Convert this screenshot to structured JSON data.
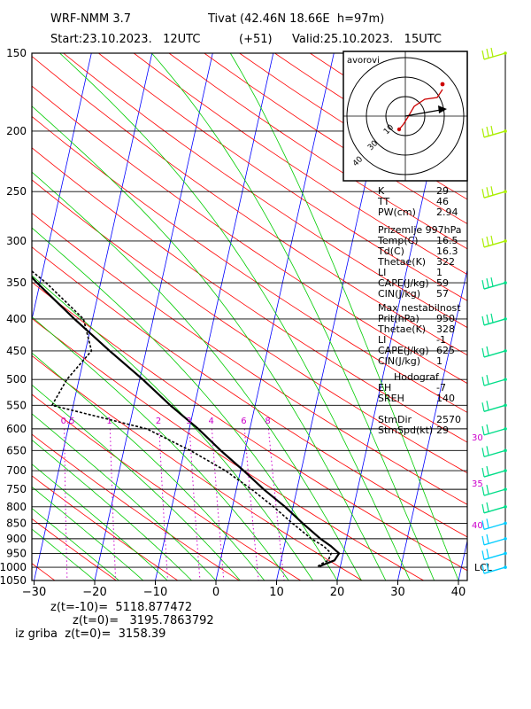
{
  "header": {
    "model": "WRF-NMM 3.7",
    "station": "Tivat (42.46N 18.66E  h=97m)",
    "start": "Start:23.10.2023.   12UTC",
    "lead": "(+51)",
    "valid": "Valid:25.10.2023.   15UTC"
  },
  "hodograph": {
    "title": "avorovi",
    "ring_labels": [
      "10",
      "30",
      "40"
    ]
  },
  "panels": [
    {
      "title": "",
      "rows": [
        [
          "K",
          "29"
        ],
        [
          "TT",
          "46"
        ],
        [
          "PW(cm)",
          "2.94"
        ]
      ]
    },
    {
      "title": "Prizemlje 997hPa",
      "rows": [
        [
          "Temp(C)",
          "16.5"
        ],
        [
          "Td(C)",
          "16.3"
        ],
        [
          "Thetae(K)",
          "322"
        ],
        [
          "LI",
          "1"
        ],
        [
          "CAPE(J/kg)",
          "59"
        ],
        [
          "CIN(J/kg)",
          "57"
        ]
      ]
    },
    {
      "title": "Max nestabilnost",
      "rows": [
        [
          "Prit(hPa)",
          "950"
        ],
        [
          "Thetae(K)",
          "328"
        ],
        [
          "LI",
          "-1"
        ],
        [
          "CAPE(J/kg)",
          "625"
        ],
        [
          "CIN(J/kg)",
          "1"
        ]
      ]
    },
    {
      "title": "Hodograf",
      "rows": [
        [
          "EH",
          "-7"
        ],
        [
          "SREH",
          "140"
        ],
        [
          "",
          ""
        ],
        [
          "StmDir",
          "2570"
        ],
        [
          "StmSpd(kt)",
          "29"
        ]
      ]
    }
  ],
  "footer": {
    "line1": "z(t=-10)=  5118.877472",
    "line2": "z(t=0)=   3195.7863792",
    "line3": "iz griba  z(t=0)=  3158.39"
  },
  "lcl_label": "LCL",
  "colors": {
    "isobar": "#000000",
    "isotherm": "#0000ff",
    "dry_adiabat": "#ff0000",
    "moist_adiabat": "#00cc00",
    "mixing_ratio": "#cc00cc",
    "temperature": "#000000",
    "dewpoint": "#000000",
    "wind_barb": "#aaee00"
  },
  "chart_data": {
    "type": "skew-T log-P",
    "pressure_levels": [
      150,
      200,
      250,
      300,
      350,
      400,
      450,
      500,
      550,
      600,
      650,
      700,
      750,
      800,
      850,
      900,
      950,
      1000,
      1050
    ],
    "temperature_ticks": [
      -30,
      -20,
      -10,
      0,
      10,
      20,
      30,
      40
    ],
    "mixing_ratio_labels": [
      [
        "0.5",
        0.5
      ],
      [
        "1",
        1
      ],
      [
        "2",
        2
      ],
      [
        "3",
        3
      ],
      [
        "4",
        4
      ],
      [
        "6",
        6
      ],
      [
        "8",
        8
      ]
    ],
    "moist_labels": [
      [
        "30",
        30
      ],
      [
        "35",
        35
      ],
      [
        "40",
        40
      ]
    ],
    "temperature_profile": [
      [
        997,
        16.5
      ],
      [
        990,
        17.2
      ],
      [
        975,
        18.8
      ],
      [
        950,
        19.3
      ],
      [
        925,
        17.7
      ],
      [
        900,
        15.7
      ],
      [
        850,
        12.2
      ],
      [
        800,
        8.7
      ],
      [
        750,
        4.5
      ],
      [
        700,
        0.5
      ],
      [
        650,
        -4.0
      ],
      [
        600,
        -8.5
      ],
      [
        550,
        -14.0
      ],
      [
        500,
        -19.5
      ],
      [
        450,
        -26.0
      ],
      [
        400,
        -33.0
      ],
      [
        350,
        -40.5
      ],
      [
        300,
        -48.5
      ],
      [
        250,
        -55.5
      ],
      [
        200,
        -56.0
      ],
      [
        150,
        -59.5
      ]
    ],
    "dewpoint_profile": [
      [
        997,
        16.3
      ],
      [
        990,
        16.6
      ],
      [
        975,
        17.8
      ],
      [
        950,
        18.0
      ],
      [
        925,
        16.5
      ],
      [
        900,
        14.2
      ],
      [
        850,
        10.5
      ],
      [
        800,
        6.8
      ],
      [
        750,
        2.5
      ],
      [
        700,
        -2.5
      ],
      [
        650,
        -9.0
      ],
      [
        600,
        -17.0
      ],
      [
        550,
        -33.5
      ],
      [
        500,
        -32.0
      ],
      [
        450,
        -29.0
      ],
      [
        400,
        -31.5
      ],
      [
        350,
        -39.0
      ],
      [
        300,
        -49.0
      ],
      [
        250,
        -67.0
      ],
      [
        200,
        -82.0
      ],
      [
        150,
        -85.0
      ]
    ],
    "wind_levels_hPa": [
      150,
      200,
      250,
      300,
      350,
      400,
      450,
      500,
      550,
      600,
      650,
      700,
      750,
      800,
      850,
      900,
      950,
      1000
    ]
  }
}
